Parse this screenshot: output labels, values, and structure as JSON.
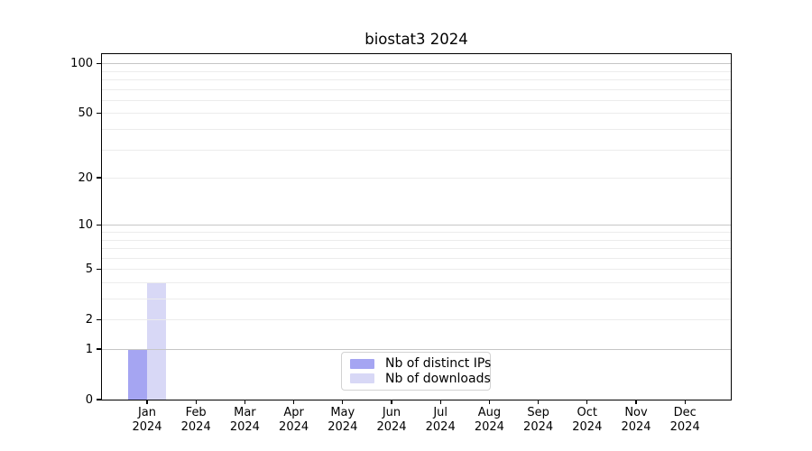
{
  "chart_data": {
    "type": "bar",
    "title": "biostat3 2024",
    "categories": [
      "Jan",
      "Feb",
      "Mar",
      "Apr",
      "May",
      "Jun",
      "Jul",
      "Aug",
      "Sep",
      "Oct",
      "Nov",
      "Dec"
    ],
    "x_tick_year_line": "2024",
    "series": [
      {
        "name": "Nb of distinct IPs",
        "color": "#a5a5f2",
        "values": [
          1,
          0,
          0,
          0,
          0,
          0,
          0,
          0,
          0,
          0,
          0,
          0
        ]
      },
      {
        "name": "Nb of downloads",
        "color": "#d8d8f6",
        "values": [
          4,
          0,
          0,
          0,
          0,
          0,
          0,
          0,
          0,
          0,
          0,
          0
        ]
      }
    ],
    "yscale": "log1p",
    "ylim": [
      0,
      113
    ],
    "ytick_values": [
      0,
      1,
      2,
      5,
      10,
      20,
      50,
      100
    ],
    "ytick_labels": [
      "0",
      "1",
      "2",
      "5",
      "10",
      "20",
      "50",
      "100"
    ],
    "major_grid_values": [
      1,
      10,
      100
    ],
    "minor_grid_values": [
      2,
      3,
      4,
      5,
      6,
      7,
      8,
      9,
      20,
      30,
      40,
      50,
      60,
      70,
      80,
      90
    ],
    "grid": true,
    "legend_position": "lower center",
    "xlabel": "",
    "ylabel": "",
    "colors": {
      "major_grid": "#c6c6c6",
      "minor_grid": "#ececec",
      "spine": "#000000",
      "text": "#000000",
      "legend_border": "#d2d2d2",
      "background": "#ffffff"
    }
  }
}
